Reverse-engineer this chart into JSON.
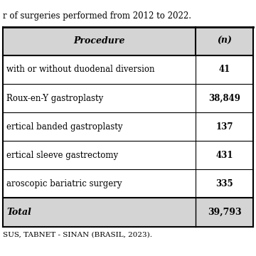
{
  "title_text": "r of surgeries performed from 2012 to 2022.",
  "col_header": [
    "Procedure",
    "(n)"
  ],
  "rows": [
    [
      "with or without duodenal diversion",
      "41"
    ],
    [
      "Roux-en-Y gastroplasty",
      "38,849"
    ],
    [
      "ertical banded gastroplasty",
      "137"
    ],
    [
      "ertical sleeve gastrectomy",
      "431"
    ],
    [
      "aroscopic bariatric surgery",
      "335"
    ]
  ],
  "total_row": [
    "Total",
    "39,793"
  ],
  "footer_text": "SUS, TABNET - SINAN (BRASIL, 2023).",
  "bg_color": "#ffffff",
  "header_bg": "#d4d4d4",
  "total_bg": "#d4d4d4",
  "row_bg": "#ffffff",
  "border_color": "#000000",
  "text_color": "#000000",
  "font_size": 8.5,
  "header_font_size": 9,
  "footer_font_size": 7.5,
  "col_split": 0.77
}
